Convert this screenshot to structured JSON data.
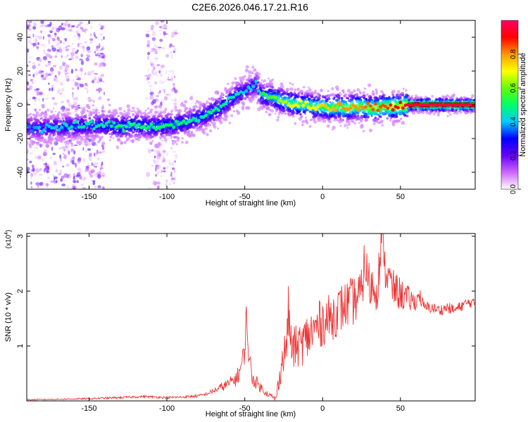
{
  "figure": {
    "title": "C2E6.2026.046.17.21.R16",
    "colors": {
      "frame": "#000000",
      "snr_line": "#ee3333",
      "background": "#ffffff"
    }
  },
  "chart_data": [
    {
      "type": "heatmap",
      "title": "C2E6.2026.046.17.21.R16",
      "xlabel": "Height of straight line (km)",
      "ylabel": "Frequency (Hz)",
      "xlim": [
        -190,
        98
      ],
      "ylim": [
        -50,
        50
      ],
      "xticks": [
        -150,
        -100,
        -50,
        0,
        50
      ],
      "yticks": [
        -40,
        -20,
        0,
        20,
        40
      ],
      "grid": false,
      "colorbar": {
        "label": "Normalized spectral amplitude",
        "range": [
          0,
          1
        ],
        "ticks": [
          0.0,
          0.2,
          0.4,
          0.6,
          0.8
        ],
        "tick_labels": [
          "0.0",
          "0.2",
          "0.4",
          "0.6",
          "0.8"
        ],
        "colormap": [
          "#ffffff",
          "#cc66ff",
          "#6600ff",
          "#0000ff",
          "#00ccff",
          "#00ff66",
          "#66ff00",
          "#ffff00",
          "#ff9900",
          "#ff0000",
          "#ff0066"
        ]
      },
      "ridge": {
        "x": [
          -190,
          -180,
          -170,
          -160,
          -150,
          -140,
          -130,
          -120,
          -110,
          -100,
          -90,
          -80,
          -70,
          -60,
          -55,
          -50,
          -45,
          -42,
          -40,
          -35,
          -30,
          -25,
          -20,
          -15,
          -10,
          -5,
          0,
          5,
          10,
          15,
          20,
          25,
          30,
          35,
          40,
          45,
          50,
          55,
          60,
          70,
          80,
          90,
          98
        ],
        "y": [
          -13,
          -14,
          -13,
          -13,
          -12,
          -12,
          -13,
          -12,
          -13,
          -12,
          -11,
          -8,
          -4,
          2,
          6,
          8,
          11,
          12,
          6,
          5,
          4,
          2,
          1,
          0,
          0,
          -1,
          -1,
          -2,
          -1,
          -2,
          -1,
          -1,
          -2,
          -2,
          -1,
          -1,
          -1,
          0,
          0,
          0,
          0,
          0,
          0
        ],
        "amplitude": [
          0.35,
          0.4,
          0.4,
          0.45,
          0.45,
          0.45,
          0.5,
          0.5,
          0.5,
          0.5,
          0.5,
          0.45,
          0.5,
          0.45,
          0.45,
          0.4,
          0.4,
          0.4,
          0.5,
          0.55,
          0.6,
          0.65,
          0.7,
          0.7,
          0.7,
          0.7,
          0.75,
          0.75,
          0.8,
          0.8,
          0.8,
          0.8,
          0.85,
          0.85,
          0.85,
          0.9,
          0.9,
          0.95,
          1.0,
          1.0,
          1.0,
          1.0,
          1.0
        ]
      },
      "noise_bands": [
        {
          "x": [
            -190,
            -140
          ],
          "y": [
            -50,
            50
          ],
          "level": 0.2
        },
        {
          "x": [
            -113,
            -94
          ],
          "y": [
            -50,
            50
          ],
          "level": 0.15
        }
      ]
    },
    {
      "type": "line",
      "xlabel": "Height of straight line (km)",
      "ylabel": "SNR (10 * v/v)",
      "scale_label": "(x10",
      "scale_exponent": "4",
      "scale_close": ")",
      "xlim": [
        -190,
        98
      ],
      "ylim": [
        0,
        3.05
      ],
      "xticks": [
        -150,
        -100,
        -50,
        0,
        50
      ],
      "yticks": [
        1,
        2,
        3
      ],
      "grid": false,
      "series": [
        {
          "color": "#ee3333",
          "x": [
            -190,
            -170,
            -150,
            -130,
            -115,
            -100,
            -90,
            -80,
            -75,
            -70,
            -65,
            -60,
            -55,
            -52,
            -50,
            -49,
            -47,
            -45,
            -40,
            -35,
            -30,
            -28,
            -26,
            -23,
            -22,
            -20,
            -15,
            -10,
            -5,
            0,
            5,
            10,
            15,
            20,
            25,
            27,
            30,
            35,
            37,
            39,
            40,
            45,
            50,
            55,
            60,
            62,
            65,
            70,
            75,
            80,
            85,
            90,
            95,
            98
          ],
          "y": [
            0.02,
            0.03,
            0.04,
            0.06,
            0.08,
            0.06,
            0.07,
            0.09,
            0.12,
            0.18,
            0.25,
            0.32,
            0.42,
            0.65,
            0.95,
            1.55,
            0.7,
            0.42,
            0.25,
            0.12,
            0.03,
            0.4,
            0.7,
            1.05,
            1.65,
            0.95,
            1.0,
            1.15,
            1.3,
            1.45,
            1.5,
            1.65,
            1.75,
            1.82,
            1.95,
            2.55,
            2.1,
            2.05,
            2.65,
            3.05,
            2.4,
            2.05,
            1.95,
            1.85,
            1.8,
            1.95,
            1.7,
            1.7,
            1.65,
            1.7,
            1.65,
            1.75,
            1.8,
            1.75
          ],
          "spread": [
            0.01,
            0.01,
            0.015,
            0.02,
            0.02,
            0.02,
            0.02,
            0.03,
            0.03,
            0.05,
            0.08,
            0.1,
            0.15,
            0.2,
            0.25,
            0.3,
            0.25,
            0.15,
            0.1,
            0.05,
            0.05,
            0.2,
            0.3,
            0.4,
            0.45,
            0.4,
            0.4,
            0.45,
            0.45,
            0.45,
            0.45,
            0.45,
            0.45,
            0.45,
            0.45,
            0.45,
            0.45,
            0.4,
            0.4,
            0.4,
            0.4,
            0.35,
            0.3,
            0.25,
            0.15,
            0.15,
            0.12,
            0.1,
            0.1,
            0.1,
            0.1,
            0.1,
            0.1,
            0.1
          ]
        }
      ]
    }
  ]
}
